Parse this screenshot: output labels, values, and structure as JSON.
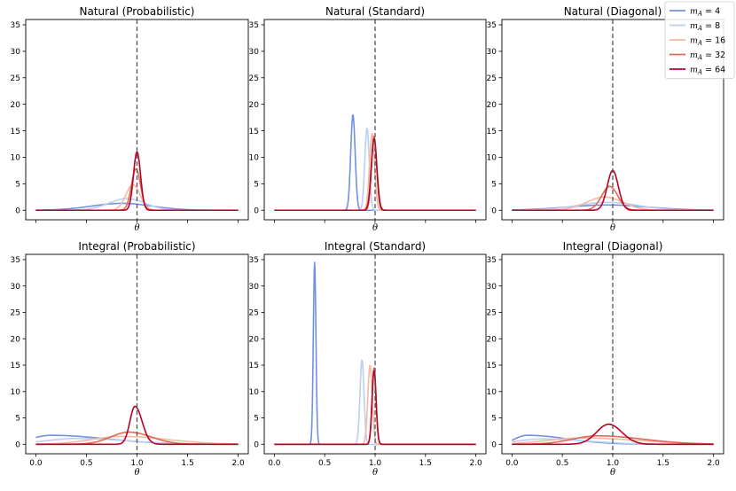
{
  "chart_data": {
    "type": "line",
    "xlabel": "θ",
    "reference_line": {
      "x": 1.0,
      "label": "θ",
      "style": "dashed",
      "color": "#555555"
    },
    "xlim": [
      -0.1,
      2.1
    ],
    "ylim": [
      -1.8,
      36
    ],
    "x_ticks": [
      0.0,
      0.5,
      1.0,
      1.5,
      2.0
    ],
    "x_tick_labels": [
      "0.0",
      "0.5",
      "1.0",
      "1.5",
      "2.0"
    ],
    "y_ticks": [
      0,
      5,
      10,
      15,
      20,
      25,
      30,
      35
    ],
    "y_tick_labels": [
      "0",
      "5",
      "10",
      "15",
      "20",
      "25",
      "30",
      "35"
    ],
    "legend": {
      "placement": "top-right",
      "entries": [
        {
          "label": "m_A = 4",
          "text": "4",
          "color": "#6f91e6"
        },
        {
          "label": "m_A = 8",
          "text": "8",
          "color": "#b9d0f0"
        },
        {
          "label": "m_A = 16",
          "text": "16",
          "color": "#f5b9a0"
        },
        {
          "label": "m_A = 32",
          "text": "32",
          "color": "#e06a55"
        },
        {
          "label": "m_A = 64",
          "text": "64",
          "color": "#b40426"
        }
      ]
    },
    "panels": [
      {
        "title": "Natural (Probabilistic)",
        "series": [
          {
            "name": "4",
            "type": "gauss",
            "mu": 0.85,
            "sigma": 0.3,
            "peak": 1.3
          },
          {
            "name": "8",
            "type": "gauss",
            "mu": 0.9,
            "sigma": 0.18,
            "peak": 2.2
          },
          {
            "name": "16",
            "type": "gauss",
            "mu": 0.96,
            "sigma": 0.07,
            "peak": 4.8
          },
          {
            "name": "32",
            "type": "gauss",
            "mu": 0.99,
            "sigma": 0.045,
            "peak": 7.8
          },
          {
            "name": "64",
            "type": "gauss",
            "mu": 1.0,
            "sigma": 0.035,
            "peak": 11.0
          }
        ]
      },
      {
        "title": "Natural (Standard)",
        "series": [
          {
            "name": "4",
            "type": "gauss",
            "mu": 0.78,
            "sigma": 0.022,
            "peak": 18.0
          },
          {
            "name": "8",
            "type": "gauss",
            "mu": 0.92,
            "sigma": 0.022,
            "peak": 15.5
          },
          {
            "name": "16",
            "type": "gauss",
            "mu": 0.97,
            "sigma": 0.025,
            "peak": 14.5
          },
          {
            "name": "32",
            "type": "gauss",
            "mu": 0.99,
            "sigma": 0.025,
            "peak": 14.0
          },
          {
            "name": "64",
            "type": "gauss",
            "mu": 0.99,
            "sigma": 0.028,
            "peak": 13.5
          }
        ]
      },
      {
        "title": "Natural (Diagonal)",
        "series": [
          {
            "name": "4",
            "type": "gauss",
            "mu": 0.95,
            "sigma": 0.4,
            "peak": 1.0
          },
          {
            "name": "8",
            "type": "gauss",
            "mu": 0.95,
            "sigma": 0.3,
            "peak": 1.5
          },
          {
            "name": "16",
            "type": "gauss",
            "mu": 0.92,
            "sigma": 0.18,
            "peak": 2.5
          },
          {
            "name": "32",
            "type": "gauss",
            "mu": 0.97,
            "sigma": 0.08,
            "peak": 4.5
          },
          {
            "name": "64",
            "type": "gauss",
            "mu": 1.0,
            "sigma": 0.055,
            "peak": 7.5
          }
        ]
      },
      {
        "title": "Integral (Probabilistic)",
        "series": [
          {
            "name": "4",
            "type": "skew",
            "mode": 0.15,
            "left": 0.2,
            "right": 0.55,
            "peak": 1.7
          },
          {
            "name": "8",
            "type": "skew",
            "mode": 0.4,
            "left": 0.3,
            "right": 0.5,
            "peak": 1.1
          },
          {
            "name": "16",
            "type": "skew",
            "mode": 0.85,
            "left": 0.3,
            "right": 0.45,
            "peak": 1.5
          },
          {
            "name": "32",
            "type": "skew",
            "mode": 0.92,
            "left": 0.18,
            "right": 0.22,
            "peak": 2.3
          },
          {
            "name": "64",
            "type": "skew",
            "mode": 0.98,
            "left": 0.05,
            "right": 0.07,
            "peak": 7.2
          }
        ]
      },
      {
        "title": "Integral (Standard)",
        "series": [
          {
            "name": "4",
            "type": "gauss",
            "mu": 0.4,
            "sigma": 0.013,
            "peak": 34.5
          },
          {
            "name": "8",
            "type": "gauss",
            "mu": 0.87,
            "sigma": 0.02,
            "peak": 16.0
          },
          {
            "name": "16",
            "type": "gauss",
            "mu": 0.95,
            "sigma": 0.022,
            "peak": 15.0
          },
          {
            "name": "32",
            "type": "gauss",
            "mu": 0.99,
            "sigma": 0.02,
            "peak": 14.5
          },
          {
            "name": "64",
            "type": "gauss",
            "mu": 0.99,
            "sigma": 0.02,
            "peak": 14.0
          }
        ]
      },
      {
        "title": "Integral (Diagonal)",
        "series": [
          {
            "name": "4",
            "type": "skew",
            "mode": 0.15,
            "left": 0.12,
            "right": 0.4,
            "peak": 1.7
          },
          {
            "name": "8",
            "type": "skew",
            "mode": 0.3,
            "left": 0.25,
            "right": 0.45,
            "peak": 1.0
          },
          {
            "name": "16",
            "type": "skew",
            "mode": 0.7,
            "left": 0.35,
            "right": 0.55,
            "peak": 1.2
          },
          {
            "name": "32",
            "type": "skew",
            "mode": 0.85,
            "left": 0.25,
            "right": 0.45,
            "peak": 1.6
          },
          {
            "name": "64",
            "type": "skew",
            "mode": 0.96,
            "left": 0.12,
            "right": 0.13,
            "peak": 3.8
          }
        ]
      }
    ]
  }
}
